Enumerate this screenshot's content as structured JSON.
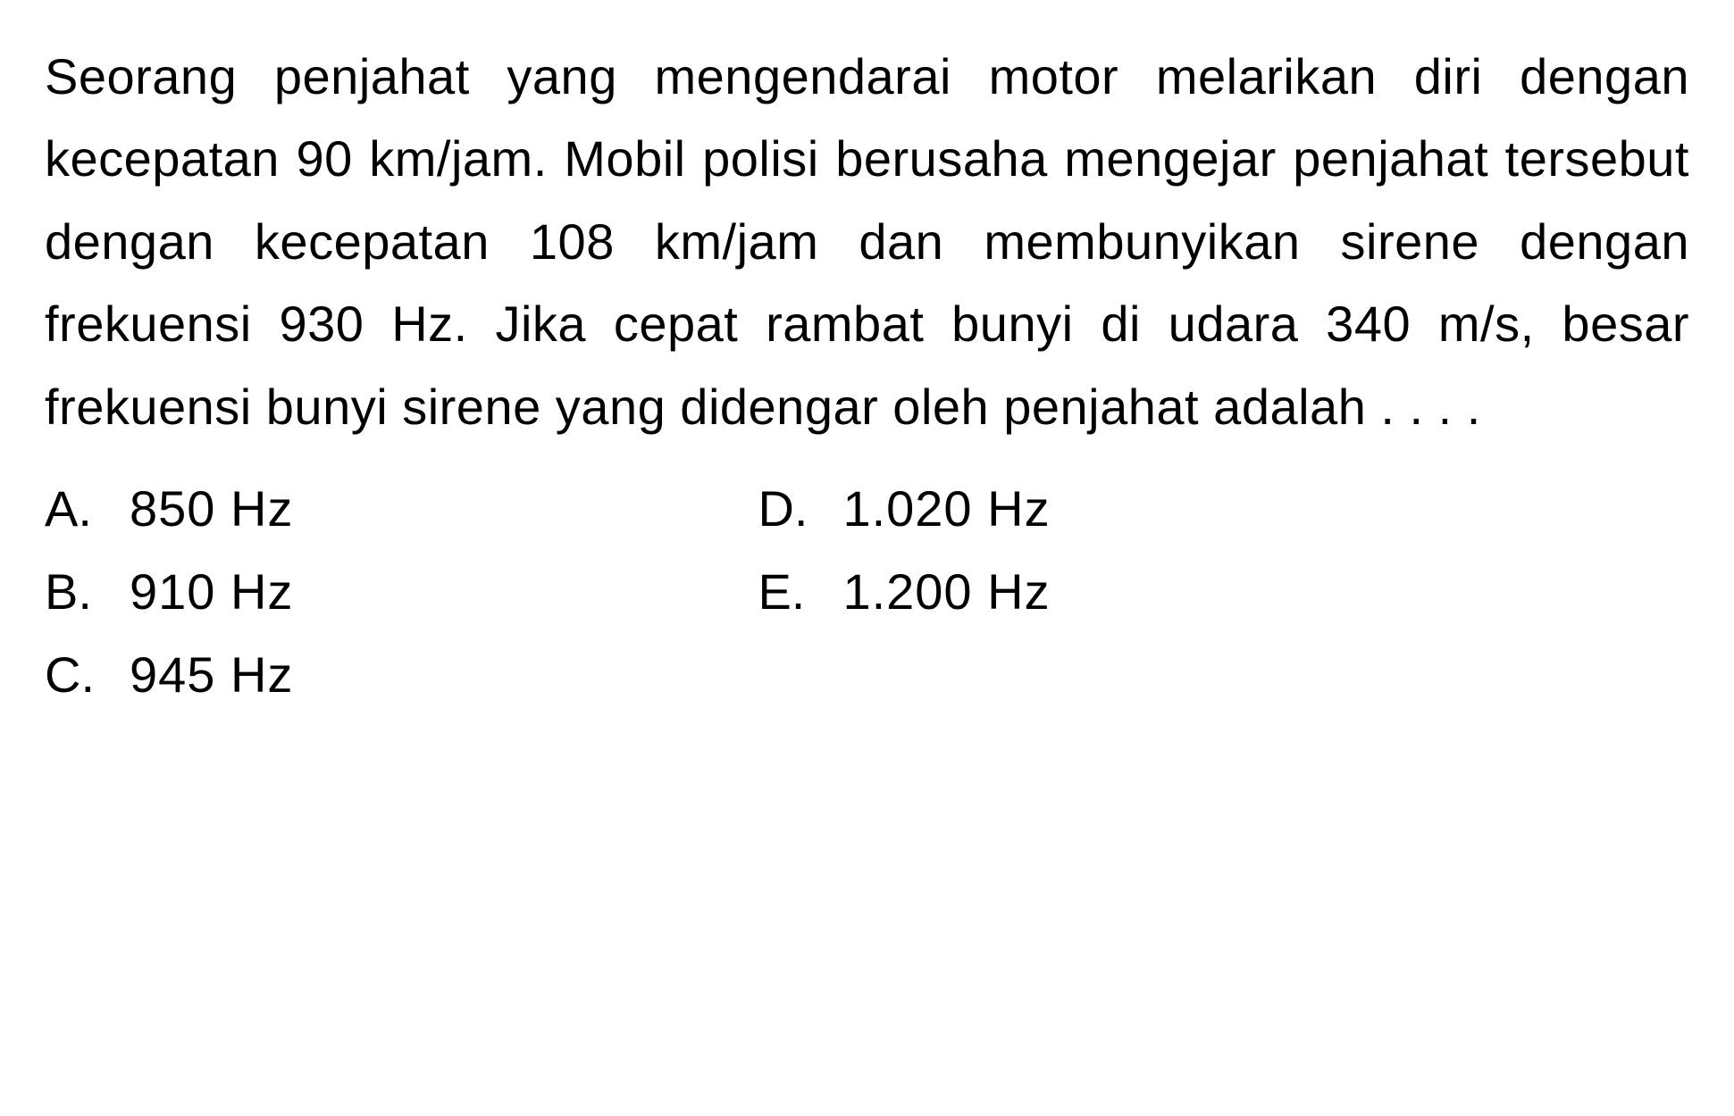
{
  "question": {
    "text": "Seorang penjahat yang mengendarai motor melarikan diri dengan kecepatan 90 km/jam. Mobil polisi berusaha mengejar penjahat tersebut dengan kecepatan 108 km/jam dan membunyikan sirene dengan frekuensi 930 Hz. Jika cepat rambat bunyi di udara 340 m/s, besar frekuensi bunyi sirene yang didengar oleh penjahat adalah . . . .",
    "text_color": "#000000",
    "background_color": "#ffffff",
    "fontsize": 56,
    "fontweight": 500,
    "line_height": 1.65
  },
  "options": {
    "left_column": [
      {
        "letter": "A.",
        "value": "850 Hz"
      },
      {
        "letter": "B.",
        "value": "910 Hz"
      },
      {
        "letter": "C.",
        "value": "945 Hz"
      }
    ],
    "right_column": [
      {
        "letter": "D.",
        "value": "1.020 Hz"
      },
      {
        "letter": "E.",
        "value": "1.200 Hz"
      }
    ],
    "fontsize": 56,
    "fontweight": 500,
    "text_color": "#000000"
  }
}
